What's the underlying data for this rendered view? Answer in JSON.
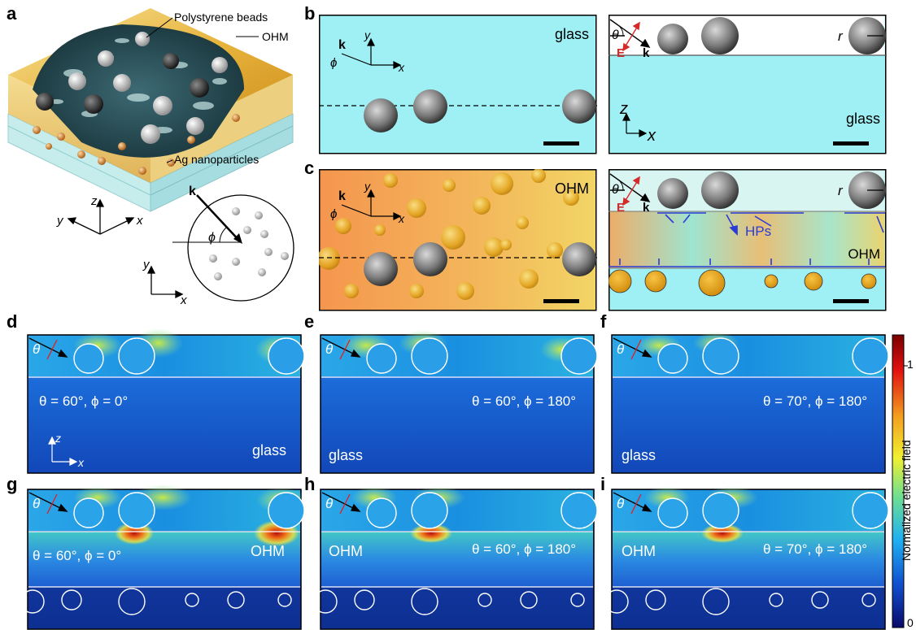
{
  "panel_labels": {
    "a": "a",
    "b": "b",
    "c": "c",
    "d": "d",
    "e": "e",
    "f": "f",
    "g": "g",
    "h": "h",
    "i": "i"
  },
  "panel_a": {
    "beads_label": "Polystyrene beads",
    "ohm_label": "OHM",
    "ag_label": "Ag nanoparticles",
    "axis_z": "z",
    "axis_y": "y",
    "axis_x": "x",
    "k_label": "k",
    "phi_label": "ϕ"
  },
  "panel_b": {
    "left": {
      "label": "glass",
      "k": "k",
      "y": "y",
      "x": "x",
      "phi": "ϕ"
    },
    "right": {
      "theta": "θ",
      "E": "E",
      "k": "k",
      "r": "r",
      "z": "z",
      "x": "x",
      "label": "glass"
    }
  },
  "panel_c": {
    "left": {
      "label": "OHM",
      "k": "k",
      "y": "y",
      "x": "x",
      "phi": "ϕ"
    },
    "right": {
      "theta": "θ",
      "E": "E",
      "k": "k",
      "r": "r",
      "hps": "HPs",
      "label": "OHM"
    }
  },
  "field_maps": {
    "d": {
      "params": "θ = 60°, ϕ = 0°",
      "medium": "glass",
      "z": "z",
      "x": "x"
    },
    "e": {
      "params": "θ = 60°, ϕ = 180°",
      "medium": "glass"
    },
    "f": {
      "params": "θ = 70°, ϕ = 180°",
      "medium": "glass"
    },
    "g": {
      "params": "θ = 60°, ϕ = 0°",
      "medium": "OHM"
    },
    "h": {
      "params": "θ = 60°, ϕ = 180°",
      "medium": "OHM"
    },
    "i": {
      "params": "θ = 70°, ϕ = 180°",
      "medium": "OHM"
    },
    "theta": "θ"
  },
  "colorbar": {
    "title": "Normalized electric field",
    "tick_max": "1",
    "tick_min": "0"
  },
  "colors": {
    "glass": "#9ef0f4",
    "ohm_orange": "#f5a65a",
    "ohm_yellow": "#f2d060",
    "field_blue": "#1a5fd6",
    "light_red": "#d42a2a"
  }
}
